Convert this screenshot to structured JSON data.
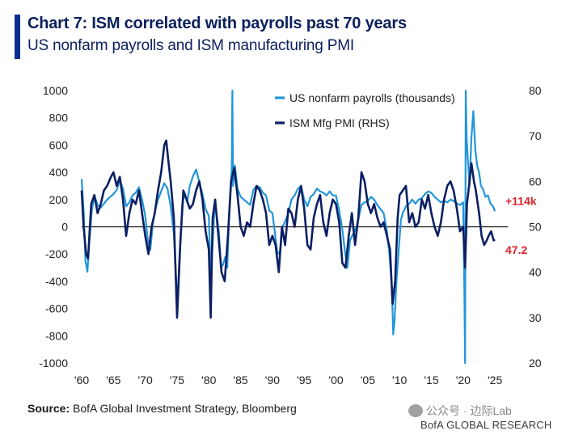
{
  "title": "Chart 7: ISM correlated with payrolls past 70 years",
  "subtitle": "US nonfarm payrolls and ISM manufacturing PMI",
  "source_label": "Source:",
  "source_text": " BofA Global Investment Strategy, Bloomberg",
  "watermark": "公众号 · 边际Lab",
  "brand": "BofA GLOBAL RESEARCH",
  "colors": {
    "payrolls": "#2196d9",
    "ism": "#0b1f63",
    "annotation": "#d9232a",
    "title": "#0a1f5c"
  },
  "chart_data": {
    "type": "line",
    "xlim": [
      1960,
      2026
    ],
    "x_ticks": [
      1960,
      1965,
      1970,
      1975,
      1980,
      1985,
      1990,
      1995,
      2000,
      2005,
      2010,
      2015,
      2020,
      2025
    ],
    "x_tick_labels": [
      "'60",
      "'65",
      "'70",
      "'75",
      "'80",
      "'85",
      "'90",
      "'95",
      "'00",
      "'05",
      "'10",
      "'15",
      "'20",
      "'25"
    ],
    "y_left": {
      "lim": [
        -1000,
        1000
      ],
      "ticks": [
        1000,
        800,
        600,
        400,
        200,
        0,
        -200,
        -400,
        -600,
        -800,
        -1000
      ],
      "tick_labels": [
        "1000",
        "800",
        "600",
        "400",
        "200",
        "0",
        "-200",
        "-400",
        "-600",
        "-800",
        "-1000"
      ]
    },
    "y_right": {
      "lim": [
        20,
        80
      ],
      "ticks": [
        80,
        70,
        60,
        50,
        40,
        30,
        20
      ],
      "tick_labels": [
        "80",
        "70",
        "60",
        "50",
        "40",
        "30",
        "20"
      ]
    },
    "legend_position": "top",
    "series": [
      {
        "name": "US nonfarm payrolls (thousands)",
        "axis": "left",
        "points": [
          [
            1960.0,
            350
          ],
          [
            1960.3,
            120
          ],
          [
            1960.6,
            -250
          ],
          [
            1960.9,
            -330
          ],
          [
            1961.2,
            -120
          ],
          [
            1961.6,
            120
          ],
          [
            1962.0,
            230
          ],
          [
            1962.5,
            160
          ],
          [
            1963.0,
            140
          ],
          [
            1963.5,
            170
          ],
          [
            1964.0,
            200
          ],
          [
            1964.5,
            220
          ],
          [
            1965.0,
            240
          ],
          [
            1965.5,
            270
          ],
          [
            1966.0,
            340
          ],
          [
            1966.5,
            280
          ],
          [
            1967.0,
            150
          ],
          [
            1967.5,
            180
          ],
          [
            1968.0,
            230
          ],
          [
            1968.5,
            250
          ],
          [
            1969.0,
            290
          ],
          [
            1969.5,
            200
          ],
          [
            1970.0,
            80
          ],
          [
            1970.4,
            -100
          ],
          [
            1970.8,
            -170
          ],
          [
            1971.2,
            30
          ],
          [
            1971.6,
            130
          ],
          [
            1972.0,
            200
          ],
          [
            1972.5,
            260
          ],
          [
            1973.0,
            320
          ],
          [
            1973.5,
            280
          ],
          [
            1974.0,
            150
          ],
          [
            1974.5,
            -50
          ],
          [
            1974.9,
            -420
          ],
          [
            1975.1,
            -560
          ],
          [
            1975.4,
            -200
          ],
          [
            1975.8,
            150
          ],
          [
            1976.2,
            250
          ],
          [
            1976.6,
            180
          ],
          [
            1977.0,
            300
          ],
          [
            1977.5,
            370
          ],
          [
            1978.0,
            420
          ],
          [
            1978.5,
            330
          ],
          [
            1979.0,
            240
          ],
          [
            1979.5,
            130
          ],
          [
            1980.0,
            80
          ],
          [
            1980.3,
            -380
          ],
          [
            1980.6,
            -120
          ],
          [
            1980.9,
            150
          ],
          [
            1981.2,
            100
          ],
          [
            1981.6,
            -50
          ],
          [
            1981.9,
            -300
          ],
          [
            1982.2,
            -280
          ],
          [
            1982.6,
            -220
          ],
          [
            1982.9,
            -300
          ],
          [
            1983.2,
            100
          ],
          [
            1983.6,
            420
          ],
          [
            1983.7,
            1000
          ],
          [
            1983.8,
            300
          ],
          [
            1984.1,
            450
          ],
          [
            1984.5,
            280
          ],
          [
            1985.0,
            220
          ],
          [
            1985.5,
            200
          ],
          [
            1986.0,
            180
          ],
          [
            1986.5,
            160
          ],
          [
            1987.0,
            270
          ],
          [
            1987.5,
            300
          ],
          [
            1988.0,
            290
          ],
          [
            1988.5,
            250
          ],
          [
            1989.0,
            230
          ],
          [
            1989.5,
            120
          ],
          [
            1990.0,
            100
          ],
          [
            1990.4,
            -50
          ],
          [
            1990.8,
            -200
          ],
          [
            1991.2,
            -180
          ],
          [
            1991.6,
            0
          ],
          [
            1992.0,
            40
          ],
          [
            1992.5,
            100
          ],
          [
            1993.0,
            200
          ],
          [
            1993.5,
            230
          ],
          [
            1994.0,
            280
          ],
          [
            1994.5,
            300
          ],
          [
            1995.0,
            200
          ],
          [
            1995.5,
            150
          ],
          [
            1996.0,
            220
          ],
          [
            1996.5,
            240
          ],
          [
            1997.0,
            280
          ],
          [
            1997.5,
            260
          ],
          [
            1998.0,
            250
          ],
          [
            1998.5,
            230
          ],
          [
            1999.0,
            260
          ],
          [
            1999.5,
            230
          ],
          [
            2000.0,
            230
          ],
          [
            2000.5,
            120
          ],
          [
            2001.0,
            -20
          ],
          [
            2001.4,
            -180
          ],
          [
            2001.8,
            -300
          ],
          [
            2002.2,
            -100
          ],
          [
            2002.6,
            -60
          ],
          [
            2003.0,
            -30
          ],
          [
            2003.5,
            50
          ],
          [
            2004.0,
            160
          ],
          [
            2004.5,
            180
          ],
          [
            2005.0,
            190
          ],
          [
            2005.5,
            220
          ],
          [
            2006.0,
            200
          ],
          [
            2006.5,
            160
          ],
          [
            2007.0,
            130
          ],
          [
            2007.5,
            100
          ],
          [
            2008.0,
            -30
          ],
          [
            2008.4,
            -200
          ],
          [
            2008.8,
            -450
          ],
          [
            2009.0,
            -790
          ],
          [
            2009.2,
            -690
          ],
          [
            2009.5,
            -400
          ],
          [
            2009.9,
            -150
          ],
          [
            2010.2,
            50
          ],
          [
            2010.5,
            100
          ],
          [
            2011.0,
            150
          ],
          [
            2011.5,
            170
          ],
          [
            2012.0,
            200
          ],
          [
            2012.5,
            170
          ],
          [
            2013.0,
            200
          ],
          [
            2013.5,
            210
          ],
          [
            2014.0,
            240
          ],
          [
            2014.5,
            260
          ],
          [
            2015.0,
            250
          ],
          [
            2015.5,
            220
          ],
          [
            2016.0,
            200
          ],
          [
            2016.5,
            180
          ],
          [
            2017.0,
            190
          ],
          [
            2017.5,
            180
          ],
          [
            2018.0,
            200
          ],
          [
            2018.5,
            190
          ],
          [
            2019.0,
            170
          ],
          [
            2019.5,
            160
          ],
          [
            2020.0,
            180
          ],
          [
            2020.2,
            -500
          ],
          [
            2020.3,
            -1000
          ],
          [
            2020.4,
            1000
          ],
          [
            2020.55,
            650
          ],
          [
            2020.8,
            450
          ],
          [
            2021.0,
            300
          ],
          [
            2021.3,
            650
          ],
          [
            2021.6,
            850
          ],
          [
            2021.9,
            570
          ],
          [
            2022.2,
            450
          ],
          [
            2022.5,
            400
          ],
          [
            2022.8,
            300
          ],
          [
            2023.1,
            280
          ],
          [
            2023.5,
            220
          ],
          [
            2023.9,
            230
          ],
          [
            2024.3,
            170
          ],
          [
            2024.7,
            150
          ],
          [
            2025.0,
            114
          ]
        ]
      },
      {
        "name": "ISM Mfg PMI (RHS)",
        "axis": "right",
        "points": [
          [
            1960.0,
            58
          ],
          [
            1960.3,
            50
          ],
          [
            1960.7,
            44
          ],
          [
            1961.0,
            43
          ],
          [
            1961.5,
            55
          ],
          [
            1962.0,
            57
          ],
          [
            1962.5,
            53
          ],
          [
            1963.0,
            55
          ],
          [
            1963.5,
            58
          ],
          [
            1964.0,
            59
          ],
          [
            1964.6,
            61
          ],
          [
            1965.0,
            62
          ],
          [
            1965.5,
            59
          ],
          [
            1966.0,
            61
          ],
          [
            1966.5,
            56
          ],
          [
            1967.0,
            48
          ],
          [
            1967.5,
            53
          ],
          [
            1968.0,
            56
          ],
          [
            1968.5,
            55
          ],
          [
            1969.0,
            58
          ],
          [
            1969.5,
            53
          ],
          [
            1970.0,
            48
          ],
          [
            1970.5,
            44
          ],
          [
            1971.0,
            50
          ],
          [
            1971.5,
            53
          ],
          [
            1972.0,
            58
          ],
          [
            1972.5,
            62
          ],
          [
            1973.0,
            68
          ],
          [
            1973.3,
            69
          ],
          [
            1973.6,
            65
          ],
          [
            1974.0,
            60
          ],
          [
            1974.5,
            52
          ],
          [
            1975.0,
            30
          ],
          [
            1975.5,
            46
          ],
          [
            1976.0,
            58
          ],
          [
            1976.5,
            56
          ],
          [
            1977.0,
            54
          ],
          [
            1977.5,
            55
          ],
          [
            1978.0,
            58
          ],
          [
            1978.5,
            60
          ],
          [
            1979.0,
            56
          ],
          [
            1979.5,
            49
          ],
          [
            1980.0,
            45
          ],
          [
            1980.3,
            30
          ],
          [
            1980.6,
            52
          ],
          [
            1981.0,
            56
          ],
          [
            1981.5,
            48
          ],
          [
            1982.0,
            40
          ],
          [
            1982.5,
            38
          ],
          [
            1983.0,
            48
          ],
          [
            1983.5,
            60
          ],
          [
            1984.0,
            63
          ],
          [
            1984.5,
            57
          ],
          [
            1985.0,
            50
          ],
          [
            1985.5,
            48
          ],
          [
            1986.0,
            51
          ],
          [
            1986.5,
            50
          ],
          [
            1987.0,
            55
          ],
          [
            1987.5,
            59
          ],
          [
            1988.0,
            58
          ],
          [
            1988.5,
            56
          ],
          [
            1989.0,
            53
          ],
          [
            1989.5,
            46
          ],
          [
            1990.0,
            48
          ],
          [
            1990.5,
            46
          ],
          [
            1991.0,
            40
          ],
          [
            1991.5,
            50
          ],
          [
            1992.0,
            46
          ],
          [
            1992.5,
            54
          ],
          [
            1993.0,
            53
          ],
          [
            1993.5,
            50
          ],
          [
            1994.0,
            56
          ],
          [
            1994.5,
            59
          ],
          [
            1995.0,
            54
          ],
          [
            1995.5,
            46
          ],
          [
            1996.0,
            45
          ],
          [
            1996.5,
            52
          ],
          [
            1997.0,
            55
          ],
          [
            1997.5,
            57
          ],
          [
            1998.0,
            51
          ],
          [
            1998.5,
            48
          ],
          [
            1999.0,
            53
          ],
          [
            1999.5,
            56
          ],
          [
            2000.0,
            55
          ],
          [
            2000.5,
            51
          ],
          [
            2001.0,
            42
          ],
          [
            2001.5,
            41
          ],
          [
            2002.0,
            48
          ],
          [
            2002.5,
            53
          ],
          [
            2003.0,
            46
          ],
          [
            2003.5,
            52
          ],
          [
            2004.0,
            62
          ],
          [
            2004.5,
            60
          ],
          [
            2005.0,
            55
          ],
          [
            2005.5,
            53
          ],
          [
            2006.0,
            55
          ],
          [
            2006.5,
            52
          ],
          [
            2007.0,
            50
          ],
          [
            2007.5,
            51
          ],
          [
            2008.0,
            48
          ],
          [
            2008.5,
            45
          ],
          [
            2008.9,
            33
          ],
          [
            2009.3,
            38
          ],
          [
            2009.7,
            52
          ],
          [
            2010.0,
            57
          ],
          [
            2010.5,
            58
          ],
          [
            2011.0,
            59
          ],
          [
            2011.5,
            51
          ],
          [
            2012.0,
            53
          ],
          [
            2012.5,
            50
          ],
          [
            2013.0,
            51
          ],
          [
            2013.5,
            56
          ],
          [
            2014.0,
            54
          ],
          [
            2014.5,
            57
          ],
          [
            2015.0,
            53
          ],
          [
            2015.5,
            50
          ],
          [
            2016.0,
            48
          ],
          [
            2016.5,
            51
          ],
          [
            2017.0,
            56
          ],
          [
            2017.5,
            59
          ],
          [
            2018.0,
            60
          ],
          [
            2018.5,
            58
          ],
          [
            2019.0,
            54
          ],
          [
            2019.5,
            49
          ],
          [
            2020.0,
            50
          ],
          [
            2020.3,
            41
          ],
          [
            2020.6,
            55
          ],
          [
            2021.0,
            60
          ],
          [
            2021.3,
            64
          ],
          [
            2021.7,
            60
          ],
          [
            2022.0,
            58
          ],
          [
            2022.5,
            53
          ],
          [
            2022.9,
            48
          ],
          [
            2023.3,
            46
          ],
          [
            2023.7,
            47
          ],
          [
            2024.0,
            48
          ],
          [
            2024.4,
            49
          ],
          [
            2024.8,
            47
          ],
          [
            2025.0,
            47.2
          ]
        ]
      }
    ],
    "annotations": [
      {
        "text": "+114k",
        "x": 2025.0,
        "y": 114,
        "axis": "left"
      },
      {
        "text": "47.2",
        "x": 2025.0,
        "y": 47.2,
        "axis": "right"
      }
    ]
  }
}
